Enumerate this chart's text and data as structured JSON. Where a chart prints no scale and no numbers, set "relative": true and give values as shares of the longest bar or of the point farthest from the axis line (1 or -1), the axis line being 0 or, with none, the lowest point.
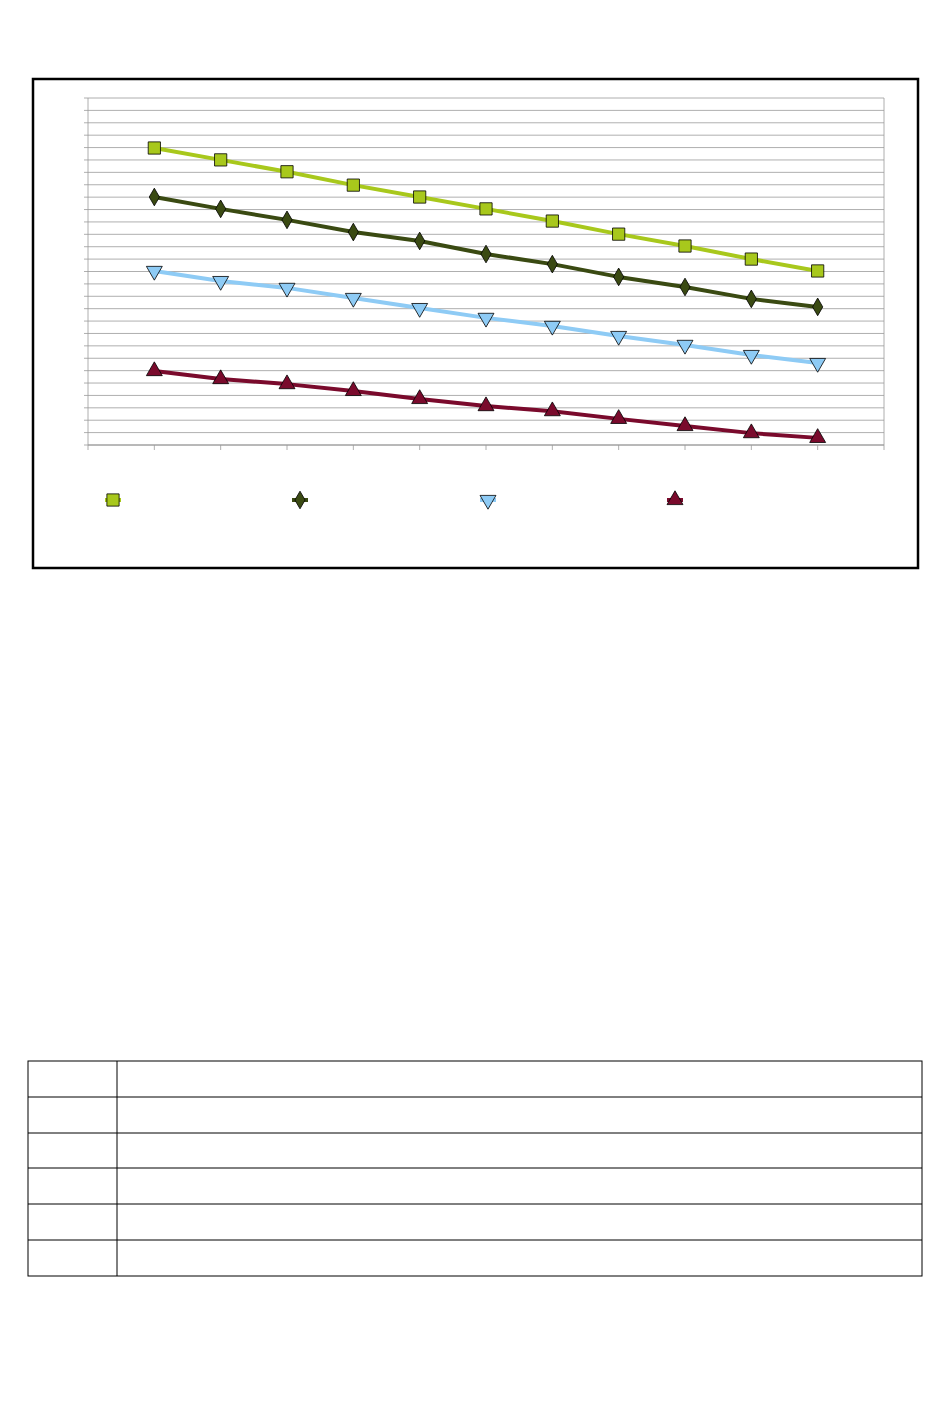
{
  "chart_data": {
    "type": "line",
    "relative": true,
    "grid": true,
    "categories": [
      null,
      null,
      null,
      null,
      null,
      null,
      null,
      null,
      null,
      null,
      null
    ],
    "series": [
      {
        "color": "#a8c81c",
        "marker": "square",
        "values": [
          1,
          0.96,
          0.92,
          0.875,
          0.835,
          0.795,
          0.754,
          0.71,
          0.67,
          0.626,
          0.586
        ]
      },
      {
        "color": "#3a4a12",
        "marker": "diamond",
        "values": [
          0.835,
          0.795,
          0.758,
          0.717,
          0.687,
          0.643,
          0.609,
          0.566,
          0.532,
          0.492,
          0.465
        ]
      },
      {
        "color": "#8ecbf5",
        "marker": "triangle-down",
        "values": [
          0.586,
          0.552,
          0.529,
          0.495,
          0.461,
          0.428,
          0.401,
          0.367,
          0.337,
          0.303,
          0.276
        ]
      },
      {
        "color": "#7a0a2c",
        "marker": "triangle",
        "values": [
          0.249,
          0.222,
          0.205,
          0.182,
          0.155,
          0.131,
          0.114,
          0.088,
          0.064,
          0.04,
          0.024
        ]
      }
    ]
  }
}
